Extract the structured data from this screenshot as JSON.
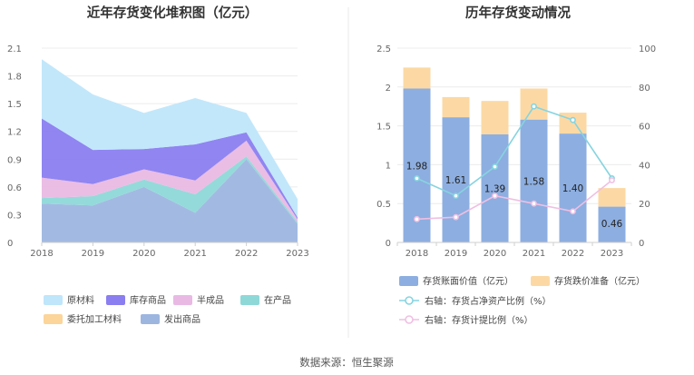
{
  "colors": {
    "yuan_cailiao": "#bfe6fb",
    "kucun_shangpin": "#8a7ef0",
    "ban_chengpin": "#e9b9e4",
    "zai_chanpin": "#8ed8d8",
    "weituo": "#fbd59a",
    "fachu": "#9db6e0",
    "book_value": "#8daee0",
    "impairment": "#fcd9a4",
    "line_ratio": "#86d4e0",
    "line_provision": "#efbfe2"
  },
  "footer": {
    "source": "数据来源：恒生聚源"
  },
  "chart_data": [
    {
      "type": "area",
      "title": "近年存货变化堆积图（亿元）",
      "x": [
        "2018",
        "2019",
        "2020",
        "2021",
        "2022",
        "2023"
      ],
      "ylim": [
        0,
        2.1
      ],
      "y_ticks": [
        "0",
        "0.3",
        "0.6",
        "0.9",
        "1.2",
        "1.5",
        "1.8",
        "2.1"
      ],
      "grid": true,
      "legend_position": "bottom",
      "stacked": true,
      "series": [
        {
          "name": "发出商品",
          "color_key": "fachu",
          "values": [
            0.42,
            0.4,
            0.6,
            0.32,
            0.9,
            0.2
          ]
        },
        {
          "name": "在产品",
          "color_key": "zai_chanpin",
          "values": [
            0.06,
            0.1,
            0.08,
            0.2,
            0.03,
            0.02
          ]
        },
        {
          "name": "委托加工材料",
          "color_key": "weituo",
          "values": [
            0.0,
            0.0,
            0.0,
            0.0,
            0.0,
            0.0
          ]
        },
        {
          "name": "半成品",
          "color_key": "ban_chengpin",
          "values": [
            0.22,
            0.13,
            0.11,
            0.15,
            0.17,
            0.03
          ]
        },
        {
          "name": "库存商品",
          "color_key": "kucun_shangpin",
          "values": [
            0.64,
            0.37,
            0.22,
            0.39,
            0.09,
            0.02
          ]
        },
        {
          "name": "原材料",
          "color_key": "yuan_cailiao",
          "values": [
            0.64,
            0.6,
            0.39,
            0.5,
            0.21,
            0.2
          ]
        }
      ],
      "legend": [
        {
          "name": "原材料",
          "color_key": "yuan_cailiao"
        },
        {
          "name": "库存商品",
          "color_key": "kucun_shangpin"
        },
        {
          "name": "半成品",
          "color_key": "ban_chengpin"
        },
        {
          "name": "在产品",
          "color_key": "zai_chanpin"
        },
        {
          "name": "委托加工材料",
          "color_key": "weituo"
        },
        {
          "name": "发出商品",
          "color_key": "fachu"
        }
      ]
    },
    {
      "type": "bar",
      "title": "历年存货变动情况",
      "categories": [
        "2018",
        "2019",
        "2020",
        "2021",
        "2022",
        "2023"
      ],
      "ylim": [
        0,
        2.5
      ],
      "y_ticks": [
        "0",
        "0.5",
        "1",
        "1.5",
        "2",
        "2.5"
      ],
      "y2lim": [
        0,
        100
      ],
      "y2_ticks": [
        "0",
        "20",
        "40",
        "60",
        "80",
        "100"
      ],
      "stacked": true,
      "grid": true,
      "legend_position": "bottom",
      "series": [
        {
          "name": "存货账面价值（亿元）",
          "color_key": "book_value",
          "values": [
            1.98,
            1.61,
            1.39,
            1.58,
            1.4,
            0.46
          ],
          "labels": [
            "1.98",
            "1.61",
            "1.39",
            "1.58",
            "1.40",
            "0.46"
          ]
        },
        {
          "name": "存货跌价准备（亿元）",
          "color_key": "impairment",
          "values": [
            0.27,
            0.26,
            0.43,
            0.4,
            0.27,
            0.24
          ]
        }
      ],
      "lines": [
        {
          "name": "右轴：存货占净资产比例（%）",
          "color_key": "line_ratio",
          "axis": "right",
          "values": [
            33,
            24,
            39,
            70,
            63,
            33
          ]
        },
        {
          "name": "右轴：存货计提比例（%）",
          "color_key": "line_provision",
          "axis": "right",
          "values": [
            12,
            13,
            24,
            20,
            16,
            32
          ]
        }
      ]
    }
  ]
}
